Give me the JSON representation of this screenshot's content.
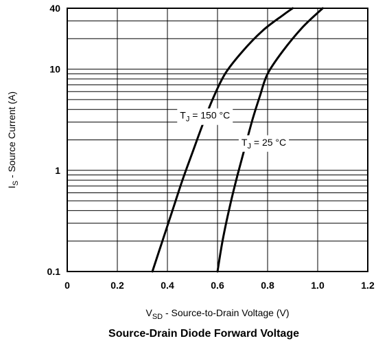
{
  "chart_data": {
    "type": "line",
    "title": "Source-Drain Diode Forward Voltage",
    "xlabel": {
      "main": "V",
      "sub": "SD",
      "rest": " - Source-to-Drain Voltage (V)"
    },
    "ylabel": {
      "main": "I",
      "sub": "S",
      "rest": " - Source Current (A)"
    },
    "x_scale": "linear",
    "y_scale": "log",
    "xlim": [
      0,
      1.2
    ],
    "ylim": [
      0.1,
      40
    ],
    "x_ticks": [
      "0",
      "0.2",
      "0.4",
      "0.6",
      "0.8",
      "1.0",
      "1.2"
    ],
    "x_tick_values": [
      0,
      0.2,
      0.4,
      0.6,
      0.8,
      1.0,
      1.2
    ],
    "y_ticks": [
      "0.1",
      "1",
      "10",
      "40"
    ],
    "y_tick_values": [
      0.1,
      1,
      10,
      40
    ],
    "grid": {
      "vertical": true,
      "horizontal_log_minor": true
    },
    "series": [
      {
        "name": "T_J = 150 °C",
        "label": {
          "main": "T",
          "sub": "J",
          "rest": " = 150 °C"
        },
        "x": [
          0.34,
          0.38,
          0.42,
          0.46,
          0.5,
          0.54,
          0.58,
          0.63,
          0.7,
          0.78,
          0.86,
          0.9
        ],
        "y": [
          0.1,
          0.2,
          0.4,
          0.8,
          1.5,
          2.8,
          5.0,
          9.0,
          15,
          24,
          34,
          40
        ]
      },
      {
        "name": "T_J = 25 °C",
        "label": {
          "main": "T",
          "sub": "J",
          "rest": " = 25 °C"
        },
        "x": [
          0.6,
          0.62,
          0.65,
          0.68,
          0.71,
          0.74,
          0.77,
          0.8,
          0.86,
          0.94,
          1.02
        ],
        "y": [
          0.1,
          0.2,
          0.45,
          0.9,
          1.7,
          3.2,
          5.5,
          9.0,
          15,
          26,
          40
        ]
      }
    ],
    "annotations": [
      {
        "series": 0,
        "at_x": 0.55,
        "at_y": 3.5
      },
      {
        "series": 1,
        "at_x": 0.785,
        "at_y": 1.9
      }
    ]
  }
}
